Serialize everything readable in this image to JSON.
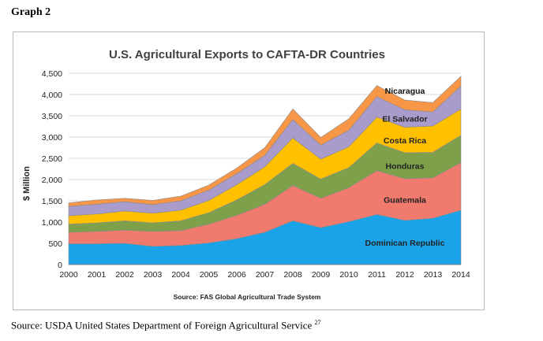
{
  "page": {
    "heading": "Graph 2",
    "caption": "Source: USDA United States Department of Foreign Agricultural Service",
    "caption_note": "27"
  },
  "chart_data": {
    "type": "area",
    "stacked": true,
    "title": "U.S. Agricultural Exports to CAFTA-DR Countries",
    "ylabel": "$ Million",
    "xlabel": "",
    "source": "Source: FAS Global Agricultural Trade System",
    "ylim": [
      0,
      4500
    ],
    "yticks": [
      "0",
      "500",
      "1,000",
      "1,500",
      "2,000",
      "2,500",
      "3,000",
      "3,500",
      "4,000",
      "4,500"
    ],
    "x": [
      "2000",
      "2001",
      "2002",
      "2003",
      "2004",
      "2005",
      "2006",
      "2007",
      "2008",
      "2009",
      "2010",
      "2011",
      "2012",
      "2013",
      "2014"
    ],
    "grid": true,
    "legend": "inline labels",
    "series": [
      {
        "name": "Dominican Republic",
        "color": "#1aa3e8",
        "values": [
          490,
          490,
          500,
          430,
          450,
          510,
          610,
          760,
          1030,
          870,
          1010,
          1180,
          1040,
          1090,
          1280
        ]
      },
      {
        "name": "Guatemala",
        "color": "#f07a6e",
        "values": [
          270,
          290,
          310,
          350,
          350,
          440,
          550,
          660,
          830,
          690,
          800,
          1030,
          980,
          950,
          1120
        ]
      },
      {
        "name": "Honduras",
        "color": "#7ea04a",
        "values": [
          190,
          200,
          220,
          200,
          230,
          270,
          360,
          460,
          520,
          450,
          470,
          650,
          610,
          600,
          640
        ]
      },
      {
        "name": "Costa Rica",
        "color": "#ffc000",
        "values": [
          200,
          210,
          230,
          230,
          250,
          290,
          360,
          420,
          600,
          470,
          490,
          610,
          600,
          620,
          620
        ]
      },
      {
        "name": "El Salvador",
        "color": "#a99ccd",
        "values": [
          220,
          230,
          220,
          200,
          220,
          240,
          260,
          270,
          430,
          330,
          390,
          480,
          410,
          330,
          540
        ]
      },
      {
        "name": "Nicaragua",
        "color": "#f79646",
        "values": [
          80,
          100,
          80,
          100,
          110,
          120,
          130,
          180,
          250,
          180,
          270,
          260,
          230,
          220,
          230
        ]
      }
    ]
  }
}
